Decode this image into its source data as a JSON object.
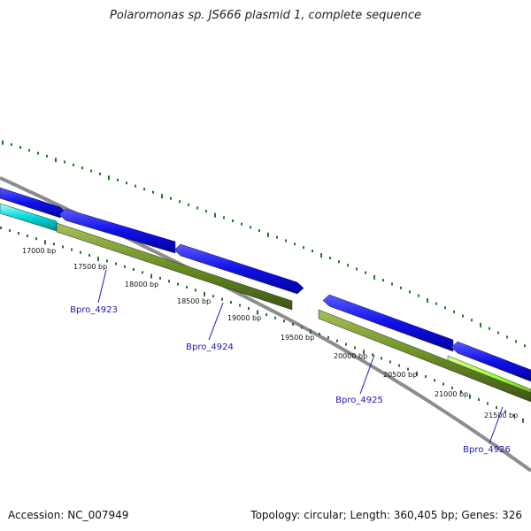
{
  "title": "Polaromonas sp. JS666 plasmid 1, complete sequence",
  "footer": {
    "accession": "Accession: NC_007949",
    "summary": "Topology: circular; Length: 360,405 bp; Genes: 326"
  },
  "map": {
    "ticks": [
      {
        "bp": 17000,
        "label": "17000 bp"
      },
      {
        "bp": 17500,
        "label": "17500 bp"
      },
      {
        "bp": 18000,
        "label": "18000 bp"
      },
      {
        "bp": 18500,
        "label": "18500 bp"
      },
      {
        "bp": 19000,
        "label": "19000 bp"
      },
      {
        "bp": 19500,
        "label": "19500 bp"
      },
      {
        "bp": 20000,
        "label": "20000 bp"
      },
      {
        "bp": 20500,
        "label": "20500 bp"
      },
      {
        "bp": 21000,
        "label": "21000 bp"
      },
      {
        "bp": 21500,
        "label": "21500 bp"
      }
    ],
    "gene_labels": [
      {
        "name": "Bpro_4923"
      },
      {
        "name": "Bpro_4924"
      },
      {
        "name": "Bpro_4925"
      },
      {
        "name": "Bpro_4926"
      }
    ],
    "colors": {
      "backbone": "#8c8c8c",
      "cds_forward": "#1010e8",
      "gene_track": "#6b8e23",
      "gc_dots": "#1a7a1a",
      "cyan_feature": "#00d8d8",
      "lime_feature": "#9aff33",
      "tick_color": "#2d6e2d",
      "gene_label_color": "#1a1aa8"
    }
  }
}
